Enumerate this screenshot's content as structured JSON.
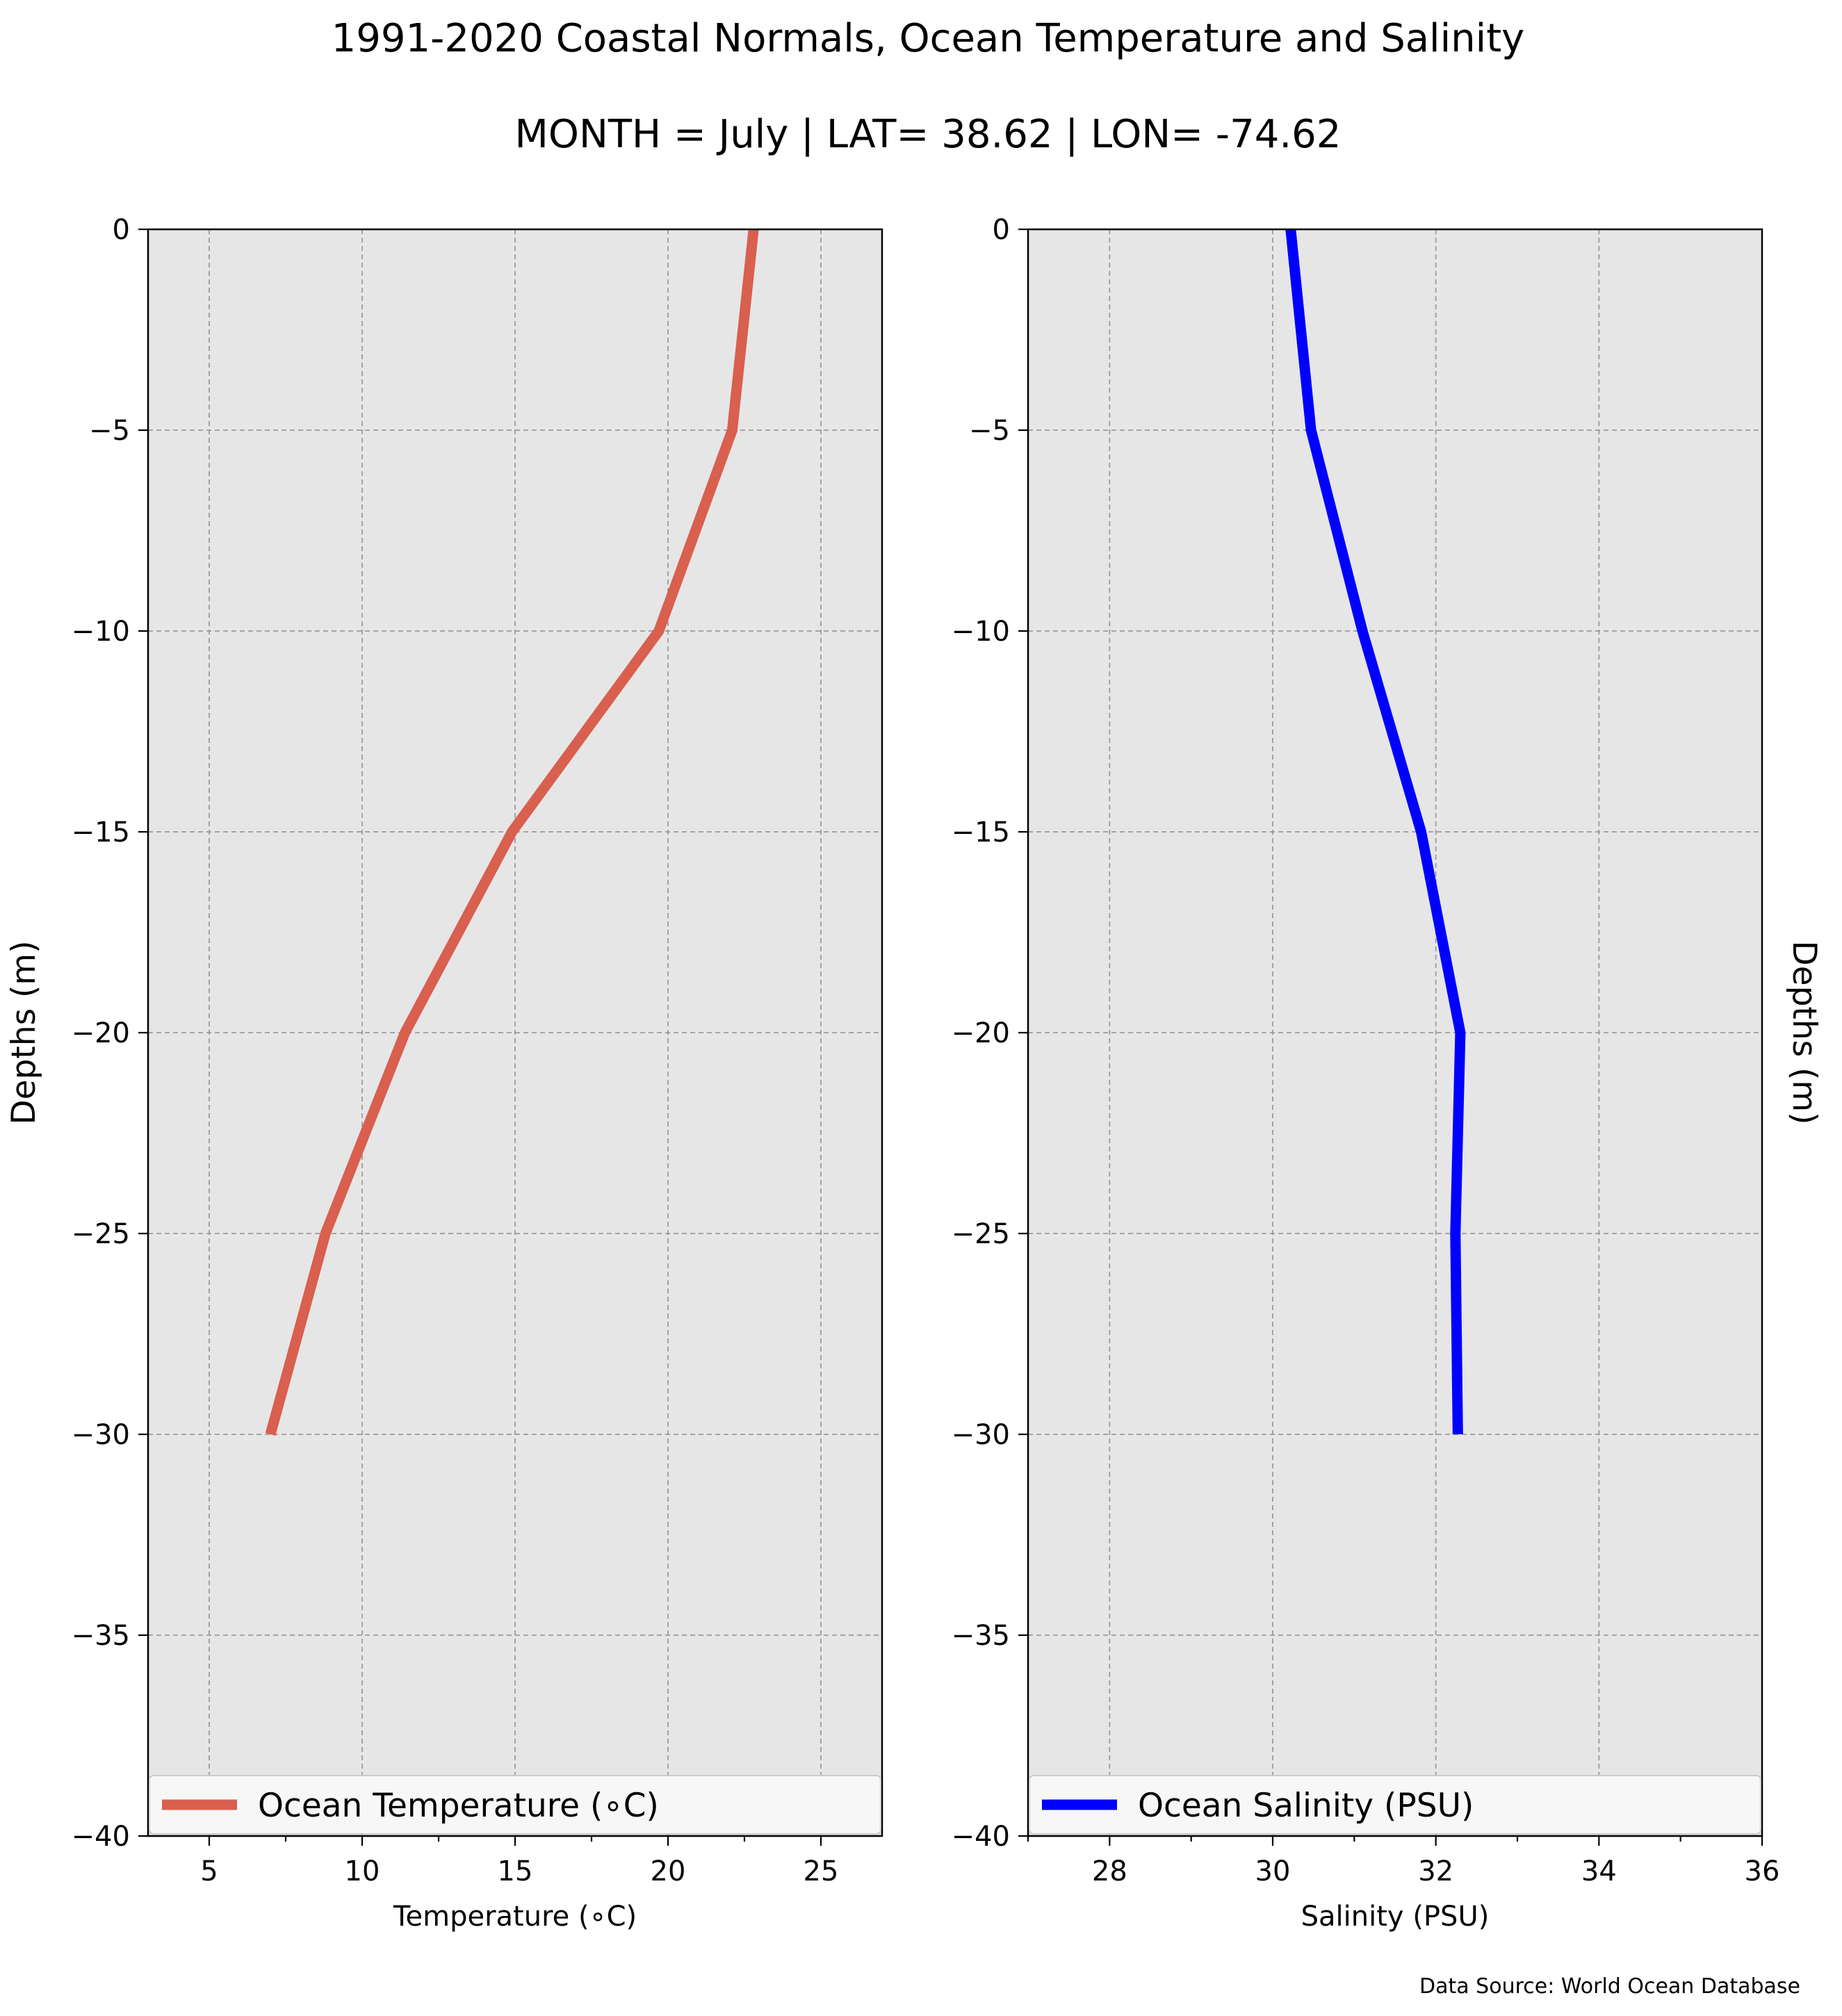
{
  "title": "1991-2020 Coastal Normals, Ocean Temperature and Salinity",
  "subtitle": "MONTH = July | LAT= 38.62 | LON= -74.62",
  "source_note": "Data Source: World Ocean Database",
  "colors": {
    "background": "#ffffff",
    "plot_background": "#e6e6e6",
    "temperature_line": "#d95f4e",
    "salinity_line": "#0000ff",
    "grid": "#9a9a9a"
  },
  "chart_data": [
    {
      "type": "line",
      "xlabel": "Temperature ($^\\circ$C)",
      "xlabel_display": "Temperature (∘C)",
      "ylabel": "Depths (m)",
      "ylabel_side": "left",
      "xlim": [
        3,
        27
      ],
      "ylim": [
        -40,
        0
      ],
      "xticks": [
        5,
        10,
        15,
        20,
        25
      ],
      "xticks_minor": [
        7.5,
        12.5,
        17.5,
        22.5
      ],
      "yticks": [
        0,
        -5,
        -10,
        -15,
        -20,
        -25,
        -30,
        -35,
        -40
      ],
      "grid": true,
      "legend_location": "lower center",
      "series": [
        {
          "name": "Ocean Temperature (∘C)",
          "color": "#d95f4e",
          "x": [
            22.8,
            22.1,
            19.7,
            14.9,
            11.4,
            8.8,
            7.0
          ],
          "y": [
            0,
            -5,
            -10,
            -15,
            -20,
            -25,
            -30
          ]
        }
      ]
    },
    {
      "type": "line",
      "xlabel": "Salinity (PSU)",
      "xlabel_display": "Salinity (PSU)",
      "ylabel": "Depths (m)",
      "ylabel_side": "right",
      "xlim": [
        27,
        36
      ],
      "ylim": [
        -40,
        0
      ],
      "xticks": [
        28,
        30,
        32,
        34,
        36
      ],
      "xticks_minor": [
        27,
        29,
        31,
        33,
        35
      ],
      "yticks": [
        0,
        -5,
        -10,
        -15,
        -20,
        -25,
        -30,
        -35,
        -40
      ],
      "grid": true,
      "legend_location": "lower center",
      "series": [
        {
          "name": "Ocean Salinity (PSU)",
          "color": "#0000ff",
          "x": [
            30.22,
            30.47,
            31.1,
            31.82,
            32.3,
            32.24,
            32.27
          ],
          "y": [
            0,
            -5,
            -10,
            -15,
            -20,
            -25,
            -30
          ]
        }
      ]
    }
  ]
}
